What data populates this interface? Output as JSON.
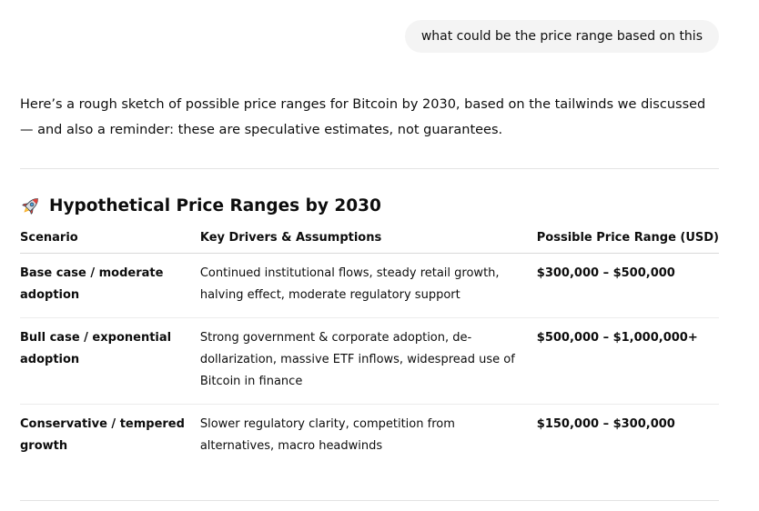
{
  "conversation": {
    "user_message": "what could be the price range based on this",
    "intro": "Here’s a rough sketch of possible price ranges for Bitcoin by 2030, based on the tailwinds we discussed — and also a reminder: these are speculative estimates, not guarantees."
  },
  "section": {
    "icon": "rocket-icon",
    "title": "Hypothetical Price Ranges by 2030"
  },
  "table": {
    "headers": {
      "scenario": "Scenario",
      "drivers": "Key Drivers & Assumptions",
      "range": "Possible Price Range (USD)"
    },
    "rows": [
      {
        "scenario": "Base case / moderate adoption",
        "drivers": "Continued institutional flows, steady retail growth, halving effect, moderate regulatory support",
        "range": "$300,000 – $500,000"
      },
      {
        "scenario": "Bull case / exponential adoption",
        "drivers": "Strong government & corporate adoption, de-dollarization, massive ETF inflows, widespread use of Bitcoin in finance",
        "range": "$500,000 – $1,000,000+"
      },
      {
        "scenario": "Conservative / tempered growth",
        "drivers": "Slower regulatory clarity, competition from alternatives, macro headwinds",
        "range": "$150,000 – $300,000"
      }
    ]
  }
}
